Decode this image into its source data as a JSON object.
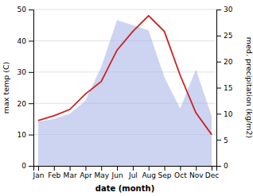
{
  "chart_data": {
    "type": "line",
    "categories": [
      "Jan",
      "Feb",
      "Mar",
      "Apr",
      "May",
      "Jun",
      "Jul",
      "Aug",
      "Sep",
      "Oct",
      "Nov",
      "Dec"
    ],
    "x_label": "date (month)",
    "y_label": "max temp (C)",
    "y2_label": "med. precipitation (kg/m2)",
    "series": [
      {
        "type": "area",
        "axis": "y2",
        "color": "#aab8e8",
        "values": [
          8.5,
          9,
          10,
          12.5,
          19,
          28,
          27,
          26,
          17,
          11,
          18.5,
          9.5
        ]
      },
      {
        "type": "line",
        "color": "#cc2222",
        "values": [
          14.5,
          16,
          18,
          23,
          27,
          37,
          43,
          48,
          43,
          29,
          17,
          10
        ]
      }
    ],
    "ylim": [
      0,
      50
    ],
    "yticks": [
      0,
      10,
      20,
      30,
      40,
      50
    ],
    "y2lim": [
      0,
      30
    ],
    "y2ticks": [
      0,
      5,
      10,
      15,
      20,
      25,
      30
    ],
    "grid": true
  }
}
